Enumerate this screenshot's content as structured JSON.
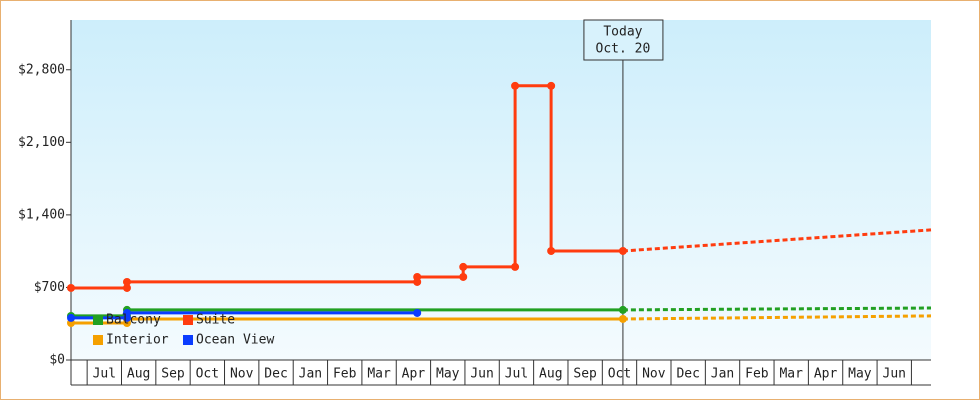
{
  "chart_data": {
    "type": "line",
    "xlim": [
      -0.47,
      24.57
    ],
    "ylim": [
      0,
      3280
    ],
    "xticks": [
      {
        "value": 0.5,
        "label": "Jul"
      },
      {
        "value": 1.5,
        "label": "Aug"
      },
      {
        "value": 2.5,
        "label": "Sep"
      },
      {
        "value": 3.5,
        "label": "Oct"
      },
      {
        "value": 4.5,
        "label": "Nov"
      },
      {
        "value": 5.5,
        "label": "Dec"
      },
      {
        "value": 6.5,
        "label": "Jan"
      },
      {
        "value": 7.5,
        "label": "Feb"
      },
      {
        "value": 8.5,
        "label": "Mar"
      },
      {
        "value": 9.5,
        "label": "Apr"
      },
      {
        "value": 10.5,
        "label": "May"
      },
      {
        "value": 11.5,
        "label": "Jun"
      },
      {
        "value": 12.5,
        "label": "Jul"
      },
      {
        "value": 13.5,
        "label": "Aug"
      },
      {
        "value": 14.5,
        "label": "Sep"
      },
      {
        "value": 15.5,
        "label": "Oct"
      },
      {
        "value": 16.5,
        "label": "Nov"
      },
      {
        "value": 17.5,
        "label": "Dec"
      },
      {
        "value": 18.5,
        "label": "Jan"
      },
      {
        "value": 19.5,
        "label": "Feb"
      },
      {
        "value": 20.5,
        "label": "Mar"
      },
      {
        "value": 21.5,
        "label": "Apr"
      },
      {
        "value": 22.5,
        "label": "May"
      },
      {
        "value": 23.5,
        "label": "Jun"
      }
    ],
    "yticks": [
      {
        "value": 0,
        "label": "$0"
      },
      {
        "value": 700,
        "label": "$700"
      },
      {
        "value": 1400,
        "label": "$1,400"
      },
      {
        "value": 2100,
        "label": "$2,100"
      },
      {
        "value": 2800,
        "label": "$2,800"
      }
    ],
    "today": {
      "x": 15.6,
      "label": [
        "Today",
        "Oct. 20"
      ]
    },
    "series": [
      {
        "name": "Balcony",
        "color": "#22a022",
        "x": [
          -0.47,
          1.16,
          1.16,
          15.6
        ],
        "values": [
          425,
          425,
          483,
          483
        ],
        "forecast": {
          "x": [
            15.6,
            24.57
          ],
          "values": [
            483,
            502
          ]
        }
      },
      {
        "name": "Suite",
        "color": "#ff3c0f",
        "x": [
          -0.47,
          1.16,
          1.16,
          9.61,
          9.61,
          10.95,
          10.95,
          12.46,
          12.46,
          13.51,
          13.51,
          15.6
        ],
        "values": [
          695,
          695,
          753,
          753,
          801,
          801,
          898,
          898,
          2645,
          2645,
          1052,
          1052
        ],
        "forecast": {
          "x": [
            15.6,
            24.57
          ],
          "values": [
            1052,
            1255
          ]
        }
      },
      {
        "name": "Interior",
        "color": "#f5a000",
        "x": [
          -0.47,
          1.16,
          1.16,
          15.6
        ],
        "values": [
          357,
          357,
          396,
          396
        ],
        "forecast": {
          "x": [
            15.6,
            24.57
          ],
          "values": [
            396,
            425
          ]
        }
      },
      {
        "name": "Ocean View",
        "color": "#0a3cff",
        "x": [
          -0.47,
          1.16,
          1.16,
          9.61
        ],
        "values": [
          406,
          406,
          454,
          454
        ]
      }
    ]
  }
}
